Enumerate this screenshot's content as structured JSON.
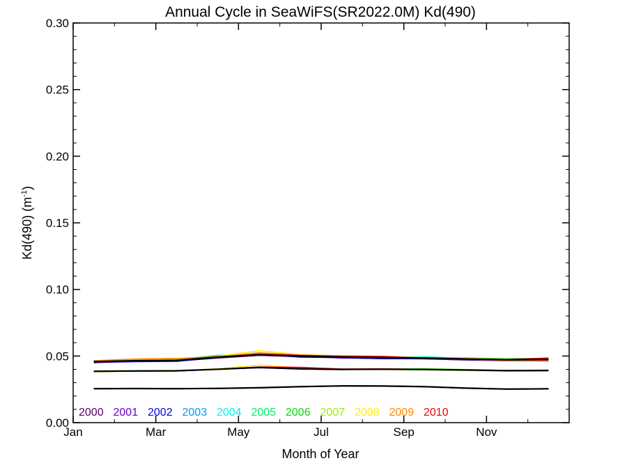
{
  "chart_data": {
    "type": "line",
    "title": "Annual Cycle in SeaWiFS(SR2022.0M) Kd(490)",
    "xlabel": "Month of Year",
    "ylabel": "Kd(490) (m",
    "ylabel_superscript": "-1",
    "ylabel_close": ")",
    "xlim": [
      0,
      12
    ],
    "ylim": [
      0.0,
      0.3
    ],
    "x_ticks": [
      {
        "value": 0,
        "label": "Jan"
      },
      {
        "value": 2,
        "label": "Mar"
      },
      {
        "value": 4,
        "label": "May"
      },
      {
        "value": 6,
        "label": "Jul"
      },
      {
        "value": 8,
        "label": "Sep"
      },
      {
        "value": 10,
        "label": "Nov"
      }
    ],
    "y_ticks": [
      {
        "value": 0.0,
        "label": "0.00"
      },
      {
        "value": 0.05,
        "label": "0.05"
      },
      {
        "value": 0.1,
        "label": "0.10"
      },
      {
        "value": 0.15,
        "label": "0.15"
      },
      {
        "value": 0.2,
        "label": "0.20"
      },
      {
        "value": 0.25,
        "label": "0.25"
      },
      {
        "value": 0.3,
        "label": "0.30"
      }
    ],
    "grid": false,
    "legend_position": "bottom-left",
    "x": [
      0.5,
      1.5,
      2.5,
      3.5,
      4.5,
      5.5,
      6.5,
      7.5,
      8.5,
      9.5,
      10.5,
      11.5
    ],
    "series": [
      {
        "name": "2000",
        "color": "#550066",
        "group": "upper",
        "values": [
          0.0455,
          0.046,
          0.0462,
          0.0485,
          0.0505,
          0.0495,
          0.049,
          0.0485,
          0.048,
          0.047,
          0.0465,
          0.0465
        ]
      },
      {
        "name": "2001",
        "color": "#6600cc",
        "group": "upper",
        "values": [
          0.045,
          0.0462,
          0.0465,
          0.0488,
          0.051,
          0.0498,
          0.0485,
          0.0482,
          0.0478,
          0.0472,
          0.0468,
          0.047
        ]
      },
      {
        "name": "2002",
        "color": "#0000ee",
        "group": "upper",
        "values": [
          0.0452,
          0.0458,
          0.046,
          0.049,
          0.0515,
          0.0492,
          0.0488,
          0.048,
          0.0482,
          0.0475,
          0.047,
          0.0472
        ]
      },
      {
        "name": "2003",
        "color": "#0099ff",
        "group": "upper",
        "values": [
          0.046,
          0.0465,
          0.047,
          0.0492,
          0.0512,
          0.05,
          0.049,
          0.0488,
          0.0485,
          0.0478,
          0.0472,
          0.0475
        ]
      },
      {
        "name": "2004",
        "color": "#00eeee",
        "group": "upper",
        "values": [
          0.0462,
          0.0468,
          0.0472,
          0.0495,
          0.0508,
          0.0502,
          0.0492,
          0.049,
          0.0495,
          0.0482,
          0.0478,
          0.048
        ]
      },
      {
        "name": "2005",
        "color": "#00ee66",
        "group": "upper",
        "values": [
          0.0465,
          0.047,
          0.0475,
          0.0505,
          0.0518,
          0.0505,
          0.0495,
          0.0492,
          0.049,
          0.0485,
          0.048,
          0.0482
        ]
      },
      {
        "name": "2006",
        "color": "#00dd00",
        "group": "upper",
        "values": [
          0.0462,
          0.0466,
          0.047,
          0.05,
          0.0512,
          0.05,
          0.0494,
          0.049,
          0.0488,
          0.0482,
          0.0478,
          0.0478
        ]
      },
      {
        "name": "2007",
        "color": "#99ee00",
        "group": "upper",
        "values": [
          0.0458,
          0.0464,
          0.0468,
          0.0496,
          0.052,
          0.0502,
          0.0496,
          0.0492,
          0.0486,
          0.048,
          0.0474,
          0.0476
        ]
      },
      {
        "name": "2008",
        "color": "#ffee00",
        "group": "upper",
        "values": [
          0.046,
          0.047,
          0.0472,
          0.0498,
          0.054,
          0.051,
          0.05,
          0.0495,
          0.0488,
          0.0482,
          0.0476,
          0.0478
        ]
      },
      {
        "name": "2009",
        "color": "#ff8800",
        "group": "upper",
        "values": [
          0.0465,
          0.0478,
          0.0482,
          0.0495,
          0.0525,
          0.0508,
          0.0502,
          0.0498,
          0.0485,
          0.0476,
          0.0468,
          0.047
        ]
      },
      {
        "name": "2010",
        "color": "#ee0000",
        "group": "upper",
        "values": [
          0.0455,
          0.0462,
          0.0468,
          0.049,
          0.0515,
          0.0505,
          0.0498,
          0.0496,
          0.0484,
          0.0478,
          0.0474,
          0.0485
        ]
      },
      {
        "name": "",
        "color": "#000000",
        "group": "upper-mean",
        "values": [
          0.0458,
          0.0465,
          0.0468,
          0.0492,
          0.051,
          0.05,
          0.0492,
          0.0488,
          0.0485,
          0.0478,
          0.0472,
          0.0475
        ]
      },
      {
        "name": "",
        "color": "#0000ee",
        "group": "middle",
        "values": [
          0.0385,
          0.0388,
          0.0388,
          0.04,
          0.0412,
          0.0402,
          0.0398,
          0.04,
          0.0398,
          0.0394,
          0.039,
          0.039
        ]
      },
      {
        "name": "",
        "color": "#00dd00",
        "group": "middle",
        "values": [
          0.0388,
          0.039,
          0.0392,
          0.0402,
          0.0415,
          0.0405,
          0.04,
          0.0402,
          0.0404,
          0.0398,
          0.0392,
          0.0395
        ]
      },
      {
        "name": "",
        "color": "#ffee00",
        "group": "middle",
        "values": [
          0.0382,
          0.0386,
          0.039,
          0.0404,
          0.0432,
          0.041,
          0.0402,
          0.04,
          0.0396,
          0.0392,
          0.0388,
          0.0388
        ]
      },
      {
        "name": "",
        "color": "#ee0000",
        "group": "middle",
        "values": [
          0.0384,
          0.0387,
          0.0389,
          0.0401,
          0.0418,
          0.0415,
          0.0402,
          0.0404,
          0.04,
          0.0395,
          0.0391,
          0.0392
        ]
      },
      {
        "name": "",
        "color": "#000000",
        "group": "middle-mean",
        "values": [
          0.0385,
          0.0388,
          0.0389,
          0.0401,
          0.0415,
          0.0404,
          0.04,
          0.0401,
          0.0399,
          0.0395,
          0.039,
          0.0391
        ]
      },
      {
        "name": "",
        "color": "#0000ee",
        "group": "lower",
        "values": [
          0.0255,
          0.0256,
          0.0255,
          0.0257,
          0.0262,
          0.027,
          0.0276,
          0.0275,
          0.027,
          0.0258,
          0.0252,
          0.0255
        ]
      },
      {
        "name": "",
        "color": "#00dd00",
        "group": "lower",
        "values": [
          0.0256,
          0.0257,
          0.0256,
          0.0258,
          0.0263,
          0.0271,
          0.0277,
          0.0276,
          0.0271,
          0.026,
          0.0253,
          0.0254
        ]
      },
      {
        "name": "",
        "color": "#ee0000",
        "group": "lower",
        "values": [
          0.0254,
          0.0255,
          0.0254,
          0.0256,
          0.0261,
          0.0269,
          0.0275,
          0.0274,
          0.0269,
          0.0258,
          0.0251,
          0.0253
        ]
      },
      {
        "name": "",
        "color": "#000000",
        "group": "lower-mean",
        "values": [
          0.0255,
          0.0256,
          0.0255,
          0.0257,
          0.0262,
          0.027,
          0.0276,
          0.0275,
          0.027,
          0.0259,
          0.0252,
          0.0254
        ]
      }
    ],
    "legend": [
      {
        "label": "2000",
        "color": "#550066"
      },
      {
        "label": "2001",
        "color": "#6600cc"
      },
      {
        "label": "2002",
        "color": "#0000ee"
      },
      {
        "label": "2003",
        "color": "#0099ff"
      },
      {
        "label": "2004",
        "color": "#00eeee"
      },
      {
        "label": "2005",
        "color": "#00ee66"
      },
      {
        "label": "2006",
        "color": "#00dd00"
      },
      {
        "label": "2007",
        "color": "#99ee00"
      },
      {
        "label": "2008",
        "color": "#ffee00"
      },
      {
        "label": "2009",
        "color": "#ff8800"
      },
      {
        "label": "2010",
        "color": "#ee0000"
      }
    ]
  }
}
